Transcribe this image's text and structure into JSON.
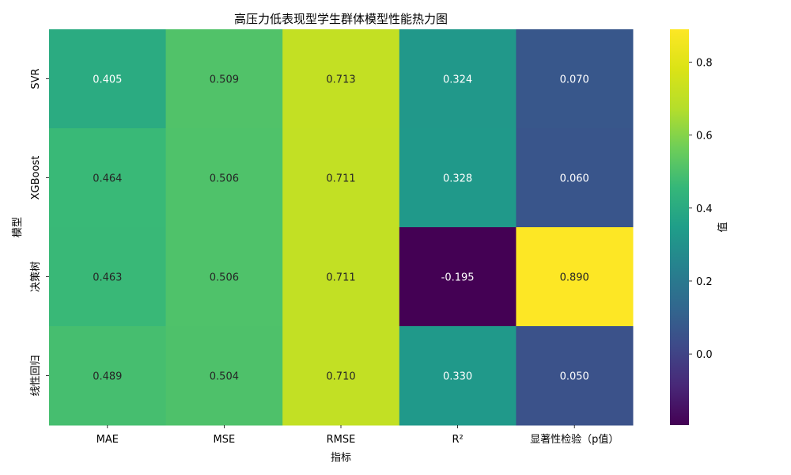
{
  "chart_data": {
    "type": "heatmap",
    "title": "高压力低表现型学生群体模型性能热力图",
    "xlabel": "指标",
    "ylabel": "模型",
    "x_categories": [
      "MAE",
      "MSE",
      "RMSE",
      "R²",
      "显著性检验（p值）"
    ],
    "y_categories": [
      "SVR",
      "XGBoost",
      "决策树",
      "线性回归"
    ],
    "values": [
      [
        0.405,
        0.509,
        0.713,
        0.324,
        0.07
      ],
      [
        0.464,
        0.506,
        0.711,
        0.328,
        0.06
      ],
      [
        0.463,
        0.506,
        0.711,
        -0.195,
        0.89
      ],
      [
        0.489,
        0.504,
        0.71,
        0.33,
        0.05
      ]
    ],
    "cell_labels": [
      [
        "0.405",
        "0.509",
        "0.713",
        "0.324",
        "0.070"
      ],
      [
        "0.464",
        "0.506",
        "0.711",
        "0.328",
        "0.060"
      ],
      [
        "0.463",
        "0.506",
        "0.711",
        "-0.195",
        "0.890"
      ],
      [
        "0.489",
        "0.504",
        "0.710",
        "0.330",
        "0.050"
      ]
    ],
    "colorscale": "viridis",
    "color_range": [
      -0.195,
      0.89
    ],
    "colorbar": {
      "label": "值",
      "ticks": [
        "0.0",
        "0.2",
        "0.4",
        "0.6",
        "0.8"
      ]
    },
    "legend_position": "right"
  }
}
